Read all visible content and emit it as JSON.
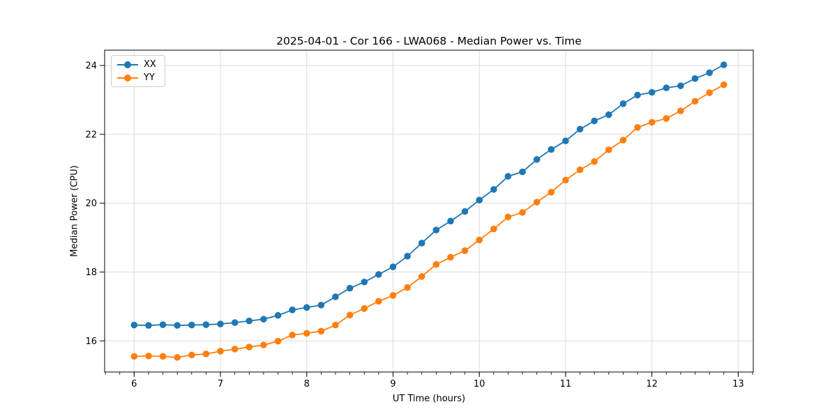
{
  "chart_data": {
    "type": "line",
    "title": "2025-04-01 - Cor 166 - LWA068 - Median Power vs. Time",
    "xlabel": "UT Time (hours)",
    "ylabel": "Median Power (CPU)",
    "xlim": [
      5.658,
      13.175
    ],
    "ylim": [
      15.095,
      24.445
    ],
    "x_ticks": [
      6,
      7,
      8,
      9,
      10,
      11,
      12,
      13
    ],
    "y_ticks": [
      16,
      18,
      20,
      22,
      24
    ],
    "minor_tick_step_x": 0.16667,
    "grid": true,
    "grid_color": "#dcdcdc",
    "spine_color": "#000000",
    "legend_position": "upper-left",
    "x": [
      6.0,
      6.167,
      6.333,
      6.5,
      6.667,
      6.833,
      7.0,
      7.167,
      7.333,
      7.5,
      7.667,
      7.833,
      8.0,
      8.167,
      8.333,
      8.5,
      8.667,
      8.833,
      9.0,
      9.167,
      9.333,
      9.5,
      9.667,
      9.833,
      10.0,
      10.167,
      10.333,
      10.5,
      10.667,
      10.833,
      11.0,
      11.167,
      11.333,
      11.5,
      11.667,
      11.833,
      12.0,
      12.167,
      12.333,
      12.5,
      12.667,
      12.833
    ],
    "series": [
      {
        "name": "XX",
        "color": "#1f77b4",
        "marker": "circle",
        "values": [
          16.46,
          16.45,
          16.47,
          16.45,
          16.46,
          16.47,
          16.49,
          16.53,
          16.58,
          16.63,
          16.74,
          16.9,
          16.97,
          17.04,
          17.28,
          17.53,
          17.71,
          17.93,
          18.15,
          18.46,
          18.84,
          19.22,
          19.48,
          19.76,
          20.09,
          20.4,
          20.78,
          20.91,
          21.27,
          21.56,
          21.81,
          22.15,
          22.39,
          22.57,
          22.89,
          23.14,
          23.22,
          23.35,
          23.41,
          23.62,
          23.79,
          24.02
        ]
      },
      {
        "name": "YY",
        "color": "#ff7f0e",
        "marker": "circle",
        "values": [
          15.55,
          15.56,
          15.55,
          15.52,
          15.59,
          15.62,
          15.7,
          15.76,
          15.82,
          15.88,
          15.99,
          16.17,
          16.22,
          16.28,
          16.46,
          16.75,
          16.94,
          17.15,
          17.32,
          17.55,
          17.87,
          18.22,
          18.43,
          18.62,
          18.93,
          19.25,
          19.6,
          19.73,
          20.03,
          20.32,
          20.67,
          20.97,
          21.21,
          21.55,
          21.83,
          22.2,
          22.35,
          22.46,
          22.68,
          22.96,
          23.21,
          23.44
        ]
      }
    ]
  }
}
